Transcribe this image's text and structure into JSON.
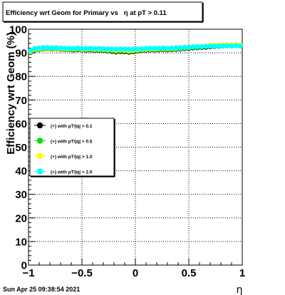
{
  "chart_data": {
    "type": "scatter",
    "title": "Efficiency wrt Geom for Primary vs   η at pT > 0.11",
    "xlabel": "η",
    "ylabel": "Efficiency wrt Geom (%)",
    "xlim": [
      -1,
      1
    ],
    "ylim": [
      0,
      100
    ],
    "x_ticks": [
      "−1",
      "−0.5",
      "0",
      "0.5",
      "1"
    ],
    "y_ticks": [
      "0",
      "10",
      "20",
      "30",
      "40",
      "50",
      "60",
      "70",
      "80",
      "90",
      "100"
    ],
    "grid": true,
    "legend_position": "middle-left",
    "x": [
      -0.98,
      -0.94,
      -0.9,
      -0.86,
      -0.82,
      -0.78,
      -0.74,
      -0.7,
      -0.66,
      -0.62,
      -0.58,
      -0.54,
      -0.5,
      -0.46,
      -0.42,
      -0.38,
      -0.34,
      -0.3,
      -0.26,
      -0.22,
      -0.18,
      -0.14,
      -0.1,
      -0.06,
      -0.02,
      0.02,
      0.06,
      0.1,
      0.14,
      0.18,
      0.22,
      0.26,
      0.3,
      0.34,
      0.38,
      0.42,
      0.46,
      0.5,
      0.54,
      0.58,
      0.62,
      0.66,
      0.7,
      0.74,
      0.78,
      0.82,
      0.86,
      0.9,
      0.94,
      0.98
    ],
    "series": [
      {
        "name": "(+) with pT/|q| > 0.1",
        "color": "#000000",
        "values": [
          90.2,
          91.2,
          91.4,
          91.7,
          91.8,
          91.6,
          91.7,
          91.5,
          91.4,
          91.3,
          91.2,
          91.4,
          91.3,
          91.1,
          91.2,
          91.0,
          91.1,
          91.0,
          90.8,
          90.6,
          90.4,
          90.6,
          90.5,
          90.3,
          90.5,
          90.8,
          91.0,
          91.1,
          91.2,
          91.2,
          91.3,
          91.4,
          91.3,
          91.4,
          91.5,
          91.6,
          91.8,
          91.9,
          92.1,
          92.2,
          92.3,
          92.4,
          92.6,
          92.7,
          92.8,
          92.9,
          93.0,
          93.0,
          93.1,
          93.0
        ]
      },
      {
        "name": "(+) with pT/|q| > 0.5",
        "color": "#00e000",
        "values": [
          90.4,
          91.3,
          91.5,
          91.8,
          91.9,
          91.7,
          91.8,
          91.6,
          91.5,
          91.4,
          91.4,
          91.6,
          91.4,
          91.3,
          91.4,
          91.2,
          91.3,
          91.2,
          91.0,
          90.9,
          90.7,
          90.9,
          90.8,
          90.6,
          90.8,
          91.0,
          91.2,
          91.3,
          91.4,
          91.4,
          91.5,
          91.6,
          91.5,
          91.6,
          91.7,
          91.8,
          92.0,
          92.1,
          92.3,
          92.4,
          92.5,
          92.7,
          92.9,
          93.0,
          93.1,
          93.2,
          93.3,
          93.3,
          93.3,
          93.2
        ]
      },
      {
        "name": "(+) with pT/|q| > 1.0",
        "color": "#ffff00",
        "values": [
          90.6,
          91.5,
          91.7,
          92.0,
          92.0,
          91.9,
          91.9,
          91.8,
          91.7,
          91.6,
          91.6,
          91.8,
          91.6,
          91.5,
          91.6,
          91.4,
          91.5,
          91.4,
          91.3,
          91.2,
          91.0,
          91.2,
          91.1,
          90.9,
          91.0,
          91.2,
          91.4,
          91.5,
          91.6,
          91.6,
          91.7,
          91.8,
          91.7,
          91.8,
          91.9,
          92.0,
          92.2,
          92.3,
          92.5,
          92.6,
          92.7,
          92.9,
          93.1,
          93.2,
          93.3,
          93.4,
          93.4,
          93.4,
          93.5,
          93.3
        ]
      },
      {
        "name": "(+) with pT/|q| > 2.0",
        "color": "#00ffff",
        "values": [
          91.0,
          91.8,
          92.0,
          92.2,
          92.2,
          92.1,
          92.1,
          92.0,
          91.9,
          91.8,
          91.8,
          92.0,
          91.8,
          91.8,
          91.9,
          91.7,
          91.8,
          91.7,
          91.6,
          91.6,
          91.5,
          91.6,
          91.6,
          91.5,
          91.5,
          91.6,
          91.7,
          91.8,
          91.9,
          91.9,
          91.9,
          92.0,
          91.9,
          92.0,
          92.1,
          92.2,
          92.3,
          92.4,
          92.5,
          92.6,
          92.6,
          92.7,
          92.8,
          92.8,
          92.9,
          92.9,
          93.0,
          92.9,
          93.0,
          92.9
        ]
      }
    ]
  },
  "timestamp": "Sun Apr 25 09:38:54 2021"
}
